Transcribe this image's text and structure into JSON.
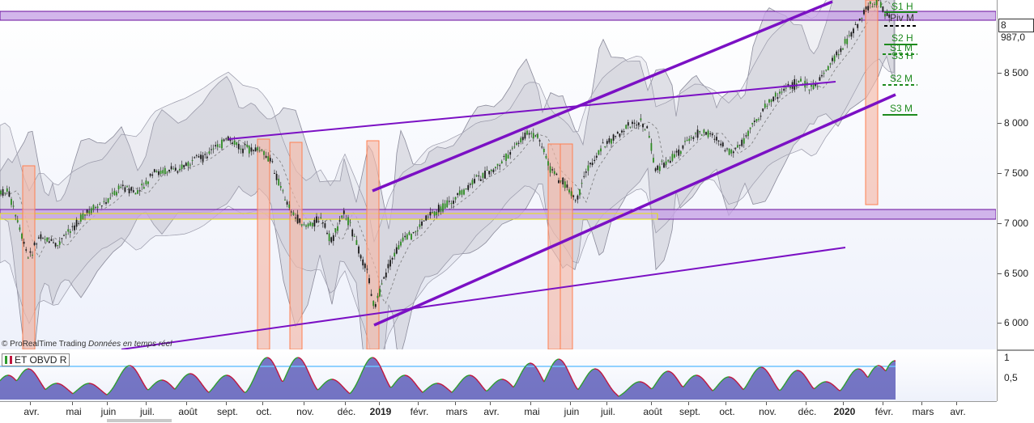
{
  "watermark": {
    "brand": "© ProRealTime Trading",
    "realtime": "Données en temps réel"
  },
  "price_axis": {
    "labels": [
      "8 500",
      "8 000",
      "7 500",
      "7 000",
      "6 500",
      "6 000"
    ],
    "current_price": "8 987,0"
  },
  "time_axis": {
    "months": [
      "avr.",
      "mai",
      "juin",
      "juil.",
      "août",
      "sept.",
      "oct.",
      "nov.",
      "déc.",
      "2019",
      "févr.",
      "mars",
      "avr.",
      "mai",
      "juin",
      "juil.",
      "août",
      "sept.",
      "oct.",
      "nov.",
      "déc.",
      "2020",
      "févr.",
      "mars",
      "avr."
    ]
  },
  "pivots": {
    "s1h": "S1 H",
    "pivm": "Piv M",
    "s2h": "S2 H",
    "s1m": "S1 M",
    "s3h": "S3 H",
    "s2m": "S2 M",
    "s3m": "S3 M"
  },
  "oscillator": {
    "label": "ET OBVD R",
    "axis": [
      "1",
      "0,5"
    ]
  },
  "colors": {
    "trendline": "#7b10c4",
    "zone_fill": "#c7a4e6",
    "candle_up": "#2e8b22",
    "band_fill": "#c9c9d2",
    "highlight": "#ff7f50",
    "pivot": "#1e8a1e",
    "osc_fill": "#4a4ab0",
    "osc_line_up": "#2e9c2e",
    "osc_line_down": "#c0153d",
    "osc_ref": "#6ec3ff"
  }
}
